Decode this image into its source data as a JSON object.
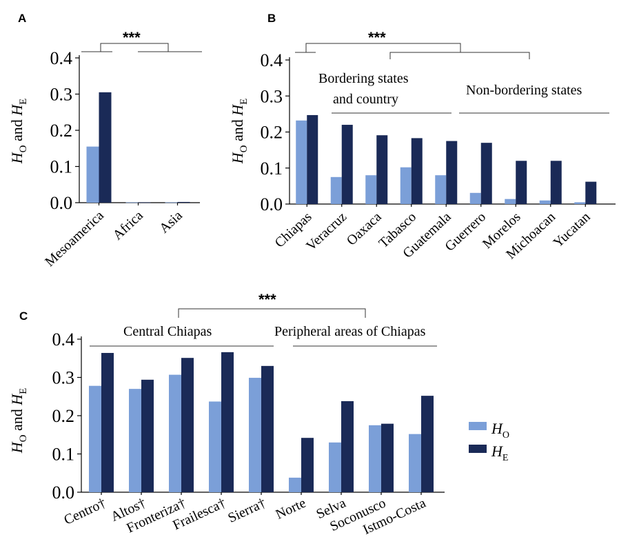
{
  "colors": {
    "ho": "#7b9fd8",
    "he": "#1a2a57"
  },
  "legend": {
    "ho_sym": "H",
    "ho_sub": "O",
    "he_sym": "H",
    "he_sub": "E"
  },
  "ylabel": {
    "sym1": "H",
    "sub1": "O",
    "mid": " and ",
    "sym2": "H",
    "sub2": "E"
  },
  "chart_data": [
    {
      "panel": "A",
      "type": "bar",
      "categories": [
        "Mesoamerica",
        "Africa",
        "Asia"
      ],
      "series": [
        {
          "name": "HO",
          "values": [
            0.155,
            0.001,
            0.001
          ]
        },
        {
          "name": "HE",
          "values": [
            0.305,
            0.001,
            0.002
          ]
        }
      ],
      "yticks": [
        "0.0",
        "0.1",
        "0.2",
        "0.3",
        "0.4"
      ],
      "ylim": [
        0,
        0.4
      ],
      "annotations": [
        "***"
      ]
    },
    {
      "panel": "B",
      "type": "bar",
      "categories": [
        "Chiapas",
        "Veracruz",
        "Oaxaca",
        "Tabasco",
        "Guatemala",
        "Guerrero",
        "Morelos",
        "Michoacan",
        "Yucatan"
      ],
      "series": [
        {
          "name": "HO",
          "values": [
            0.232,
            0.075,
            0.08,
            0.102,
            0.08,
            0.031,
            0.014,
            0.01,
            0.005
          ]
        },
        {
          "name": "HE",
          "values": [
            0.247,
            0.22,
            0.191,
            0.183,
            0.175,
            0.17,
            0.12,
            0.12,
            0.062
          ]
        }
      ],
      "yticks": [
        "0.0",
        "0.1",
        "0.2",
        "0.3",
        "0.4"
      ],
      "ylim": [
        0,
        0.4
      ],
      "groups": [
        "Bordering states",
        "and country",
        "Non-bordering states"
      ],
      "annotations": [
        "***"
      ]
    },
    {
      "panel": "C",
      "type": "bar",
      "categories": [
        "Centro†",
        "Altos†",
        "Fronteriza†",
        "Frailesca†",
        "Sierra†",
        "Norte",
        "Selva",
        "Soconusco",
        "Istmo-Costa"
      ],
      "series": [
        {
          "name": "HO",
          "values": [
            0.278,
            0.27,
            0.307,
            0.237,
            0.299,
            0.038,
            0.13,
            0.175,
            0.152
          ]
        },
        {
          "name": "HE",
          "values": [
            0.364,
            0.294,
            0.351,
            0.366,
            0.33,
            0.142,
            0.238,
            0.179,
            0.252
          ]
        }
      ],
      "yticks": [
        "0.0",
        "0.1",
        "0.2",
        "0.3",
        "0.4"
      ],
      "ylim": [
        0,
        0.4
      ],
      "groups": [
        "Central Chiapas",
        "Peripheral areas of Chiapas"
      ],
      "annotations": [
        "***"
      ]
    }
  ]
}
